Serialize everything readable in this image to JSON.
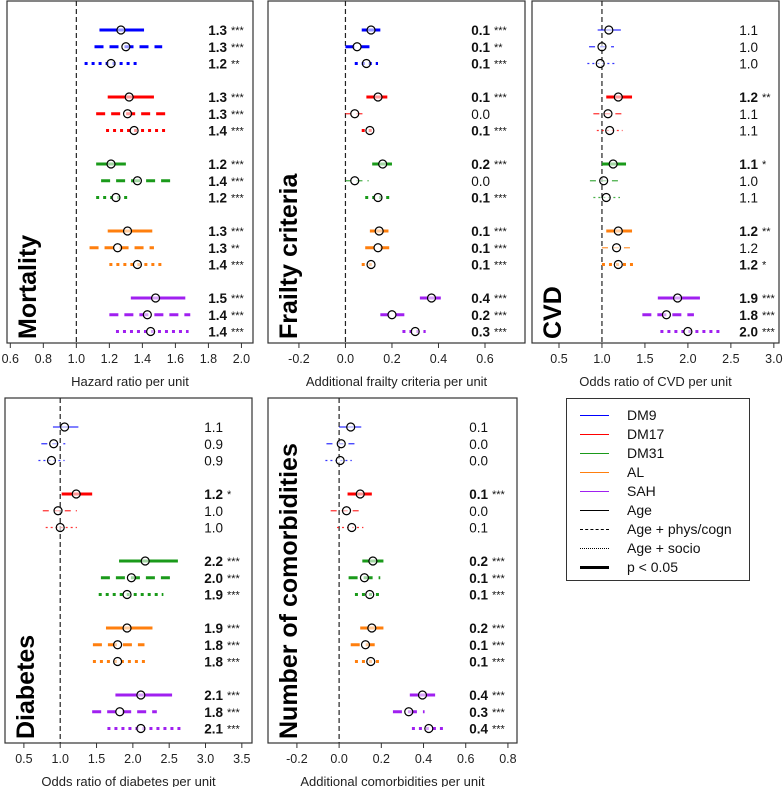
{
  "chart_data": [
    {
      "type": "forest",
      "title": "Mortality",
      "xlabel": "Hazard ratio per unit",
      "xlim": [
        0.58,
        2.07
      ],
      "ticks": [
        "0.6",
        "0.8",
        "1.0",
        "1.2",
        "1.4",
        "1.6",
        "1.8",
        "2.0"
      ],
      "tick_values": [
        0.6,
        0.8,
        1.0,
        1.2,
        1.4,
        1.6,
        1.8,
        2.0
      ],
      "reference": 1.0,
      "rows": [
        [
          1.27,
          1.14,
          1.41,
          "1.3",
          "***",
          true
        ],
        [
          1.3,
          1.11,
          1.52,
          "1.3",
          "***",
          true
        ],
        [
          1.21,
          1.05,
          1.38,
          "1.2",
          "**",
          true
        ],
        [
          1.32,
          1.19,
          1.47,
          "1.3",
          "***",
          true
        ],
        [
          1.31,
          1.12,
          1.54,
          "1.3",
          "***",
          true
        ],
        [
          1.35,
          1.18,
          1.55,
          "1.4",
          "***",
          true
        ],
        [
          1.21,
          1.12,
          1.3,
          "1.2",
          "***",
          true
        ],
        [
          1.37,
          1.15,
          1.58,
          "1.4",
          "***",
          true
        ],
        [
          1.24,
          1.12,
          1.33,
          "1.2",
          "***",
          true
        ],
        [
          1.31,
          1.19,
          1.46,
          "1.3",
          "***",
          true
        ],
        [
          1.25,
          1.08,
          1.47,
          "1.3",
          "**",
          true
        ],
        [
          1.37,
          1.2,
          1.53,
          "1.4",
          "***",
          true
        ],
        [
          1.48,
          1.33,
          1.66,
          "1.5",
          "***",
          true
        ],
        [
          1.43,
          1.2,
          1.69,
          "1.4",
          "***",
          true
        ],
        [
          1.45,
          1.24,
          1.68,
          "1.4",
          "***",
          true
        ]
      ]
    },
    {
      "type": "forest",
      "title": "Frailty criteria",
      "xlabel": "Additional frailty criteria per unit",
      "xlim": [
        -0.333,
        0.772
      ],
      "ticks": [
        "-0.2",
        "0.0",
        "0.2",
        "0.4",
        "0.6"
      ],
      "tick_values": [
        -0.2,
        0.0,
        0.2,
        0.4,
        0.6
      ],
      "reference": 0.0,
      "rows": [
        [
          0.11,
          0.07,
          0.15,
          "0.1",
          "***",
          true
        ],
        [
          0.05,
          0.0,
          0.11,
          "0.1",
          "**",
          true
        ],
        [
          0.09,
          0.04,
          0.14,
          "0.1",
          "***",
          true
        ],
        [
          0.14,
          0.09,
          0.18,
          "0.1",
          "***",
          true
        ],
        [
          0.04,
          0.0,
          0.085,
          "0.0",
          "",
          false
        ],
        [
          0.105,
          0.07,
          0.13,
          "0.1",
          "***",
          true
        ],
        [
          0.16,
          0.115,
          0.2,
          "0.2",
          "***",
          true
        ],
        [
          0.04,
          0.0,
          0.1,
          "0.0",
          "",
          false
        ],
        [
          0.14,
          0.085,
          0.19,
          "0.1",
          "***",
          true
        ],
        [
          0.145,
          0.105,
          0.185,
          "0.1",
          "***",
          true
        ],
        [
          0.14,
          0.085,
          0.195,
          "0.1",
          "***",
          true
        ],
        [
          0.11,
          0.07,
          0.13,
          "0.1",
          "***",
          true
        ],
        [
          0.37,
          0.32,
          0.41,
          "0.4",
          "***",
          true
        ],
        [
          0.2,
          0.15,
          0.26,
          "0.2",
          "***",
          true
        ],
        [
          0.3,
          0.245,
          0.345,
          "0.3",
          "***",
          true
        ]
      ]
    },
    {
      "type": "forest",
      "title": "CVD",
      "xlabel": "Odds ratio of CVD per unit",
      "xlim": [
        0.186,
        3.06
      ],
      "ticks": [
        "0.5",
        "1.0",
        "1.5",
        "2.0",
        "2.5",
        "3.0"
      ],
      "tick_values": [
        0.5,
        1.0,
        1.5,
        2.0,
        2.5,
        3.0
      ],
      "reference": 1.0,
      "rows": [
        [
          1.08,
          0.95,
          1.22,
          "1.1",
          "",
          false
        ],
        [
          1.0,
          0.85,
          1.14,
          "1.0",
          "",
          false
        ],
        [
          0.98,
          0.83,
          1.15,
          "1.0",
          "",
          false
        ],
        [
          1.19,
          1.05,
          1.35,
          "1.2",
          "**",
          true
        ],
        [
          1.07,
          0.9,
          1.26,
          "1.1",
          "",
          false
        ],
        [
          1.09,
          0.94,
          1.24,
          "1.1",
          "",
          false
        ],
        [
          1.13,
          1.0,
          1.28,
          "1.1",
          "*",
          true
        ],
        [
          1.02,
          0.86,
          1.21,
          "1.0",
          "",
          false
        ],
        [
          1.05,
          0.9,
          1.21,
          "1.1",
          "",
          false
        ],
        [
          1.19,
          1.05,
          1.35,
          "1.2",
          "**",
          true
        ],
        [
          1.17,
          1.0,
          1.38,
          "1.2",
          "",
          false
        ],
        [
          1.19,
          1.0,
          1.4,
          "1.2",
          "*",
          true
        ],
        [
          1.88,
          1.65,
          2.14,
          "1.9",
          "***",
          true
        ],
        [
          1.75,
          1.47,
          2.07,
          "1.8",
          "***",
          true
        ],
        [
          2.0,
          1.68,
          2.41,
          "2.0",
          "***",
          true
        ]
      ]
    },
    {
      "type": "forest",
      "title": "Diabetes",
      "xlabel": "Odds ratio of diabetes per unit",
      "xlim": [
        0.24,
        3.64
      ],
      "ticks": [
        "0.5",
        "1.0",
        "1.5",
        "2.0",
        "2.5",
        "3.0",
        "3.5"
      ],
      "tick_values": [
        0.5,
        1.0,
        1.5,
        2.0,
        2.5,
        3.0,
        3.5
      ],
      "reference": 1.0,
      "rows": [
        [
          1.06,
          0.9,
          1.25,
          "1.1",
          "",
          false
        ],
        [
          0.91,
          0.74,
          1.07,
          "0.9",
          "",
          false
        ],
        [
          0.88,
          0.7,
          1.06,
          "0.9",
          "",
          false
        ],
        [
          1.22,
          1.02,
          1.44,
          "1.2",
          "*",
          true
        ],
        [
          0.97,
          0.76,
          1.23,
          "1.0",
          "",
          false
        ],
        [
          1.0,
          0.8,
          1.23,
          "1.0",
          "",
          false
        ],
        [
          2.17,
          1.81,
          2.62,
          "2.2",
          "***",
          true
        ],
        [
          1.98,
          1.56,
          2.53,
          "2.0",
          "***",
          true
        ],
        [
          1.92,
          1.53,
          2.42,
          "1.9",
          "***",
          true
        ],
        [
          1.92,
          1.63,
          2.27,
          "1.9",
          "***",
          true
        ],
        [
          1.79,
          1.45,
          2.16,
          "1.8",
          "***",
          true
        ],
        [
          1.79,
          1.45,
          2.19,
          "1.8",
          "***",
          true
        ],
        [
          2.11,
          1.76,
          2.54,
          "2.1",
          "***",
          true
        ],
        [
          1.82,
          1.44,
          2.33,
          "1.8",
          "***",
          true
        ],
        [
          2.11,
          1.65,
          2.67,
          "2.1",
          "***",
          true
        ]
      ]
    },
    {
      "type": "forest",
      "title": "Number of comorbidities",
      "xlabel": "Additional comorbidities per unit",
      "xlim": [
        -0.337,
        0.843
      ],
      "ticks": [
        "-0.2",
        "0.0",
        "0.2",
        "0.4",
        "0.6",
        "0.8"
      ],
      "tick_values": [
        -0.2,
        0.0,
        0.2,
        0.4,
        0.6,
        0.8
      ],
      "reference": 0.0,
      "rows": [
        [
          0.055,
          0.0,
          0.105,
          "0.1",
          "",
          false
        ],
        [
          0.01,
          -0.06,
          0.08,
          "0.0",
          "",
          false
        ],
        [
          0.005,
          -0.065,
          0.06,
          "0.0",
          "",
          false
        ],
        [
          0.1,
          0.04,
          0.155,
          "0.1",
          "***",
          true
        ],
        [
          0.035,
          -0.04,
          0.105,
          "0.0",
          "",
          false
        ],
        [
          0.06,
          -0.01,
          0.115,
          "0.1",
          "",
          false
        ],
        [
          0.16,
          0.11,
          0.21,
          "0.2",
          "***",
          true
        ],
        [
          0.12,
          0.045,
          0.195,
          "0.1",
          "***",
          true
        ],
        [
          0.145,
          0.075,
          0.19,
          "0.1",
          "***",
          true
        ],
        [
          0.155,
          0.1,
          0.21,
          "0.2",
          "***",
          true
        ],
        [
          0.125,
          0.055,
          0.19,
          "0.1",
          "***",
          true
        ],
        [
          0.15,
          0.075,
          0.195,
          "0.1",
          "***",
          true
        ],
        [
          0.395,
          0.335,
          0.455,
          "0.4",
          "***",
          true
        ],
        [
          0.33,
          0.255,
          0.405,
          "0.3",
          "***",
          true
        ],
        [
          0.425,
          0.345,
          0.5,
          "0.4",
          "***",
          true
        ]
      ]
    }
  ],
  "groups": [
    "DM9",
    "DM17",
    "DM31",
    "AL",
    "SAH"
  ],
  "group_colors": [
    "#0000ff",
    "#ff0000",
    "#1a9a1a",
    "#ff7f0e",
    "#a020f0"
  ],
  "models": [
    "Age",
    "Age + phys/cogn",
    "Age + socio"
  ],
  "legend": {
    "items": [
      "DM9",
      "DM17",
      "DM31",
      "AL",
      "SAH",
      "Age",
      "Age + phys/cogn",
      "Age + socio",
      "p < 0.05"
    ]
  }
}
